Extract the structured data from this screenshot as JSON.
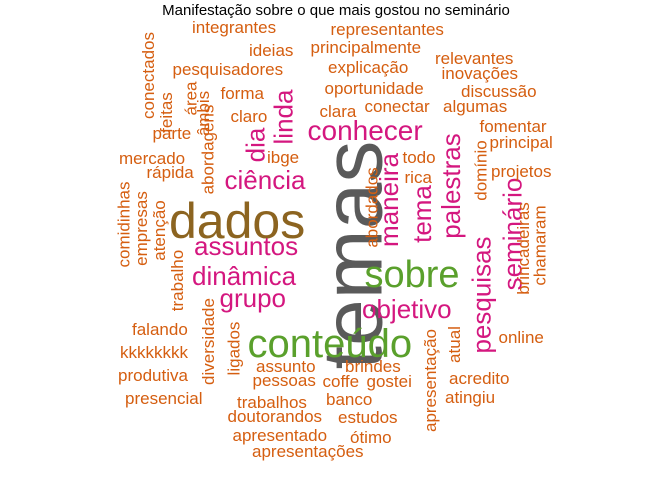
{
  "title": "Manifestação sobre o que mais gostou no seminário",
  "palette": {
    "largest": "#5a5a5a",
    "large": "#8c6420",
    "green": "#5aa02c",
    "magenta": "#d4177f",
    "orange": "#d55e10"
  },
  "words": [
    {
      "text": "temas",
      "color": "#5a5a5a"
    },
    {
      "text": "dados",
      "color": "#8c6420"
    },
    {
      "text": "sobre",
      "color": "#5aa02c"
    },
    {
      "text": "conteúdo",
      "color": "#5aa02c"
    },
    {
      "text": "conhecer",
      "color": "#d4177f"
    },
    {
      "text": "ciência",
      "color": "#d4177f"
    },
    {
      "text": "assuntos",
      "color": "#d4177f"
    },
    {
      "text": "dinâmica",
      "color": "#d4177f"
    },
    {
      "text": "grupo",
      "color": "#d4177f"
    },
    {
      "text": "objetivo",
      "color": "#d4177f"
    },
    {
      "text": "linda",
      "color": "#d4177f"
    },
    {
      "text": "dia",
      "color": "#d4177f"
    },
    {
      "text": "maneira",
      "color": "#d4177f"
    },
    {
      "text": "tema",
      "color": "#d4177f"
    },
    {
      "text": "palestras",
      "color": "#d4177f"
    },
    {
      "text": "pesquisas",
      "color": "#d4177f"
    },
    {
      "text": "seminário",
      "color": "#d4177f"
    },
    {
      "text": "integrantes",
      "color": "#d55e10"
    },
    {
      "text": "representantes",
      "color": "#d55e10"
    },
    {
      "text": "conectados",
      "color": "#d55e10"
    },
    {
      "text": "ideias",
      "color": "#d55e10"
    },
    {
      "text": "principalmente",
      "color": "#d55e10"
    },
    {
      "text": "relevantes",
      "color": "#d55e10"
    },
    {
      "text": "pesquisadores",
      "color": "#d55e10"
    },
    {
      "text": "explicação",
      "color": "#d55e10"
    },
    {
      "text": "inovações",
      "color": "#d55e10"
    },
    {
      "text": "área",
      "color": "#d55e10"
    },
    {
      "text": "oportunidade",
      "color": "#d55e10"
    },
    {
      "text": "discussão",
      "color": "#d55e10"
    },
    {
      "text": "feitas",
      "color": "#d55e10"
    },
    {
      "text": "âmbis",
      "color": "#d55e10"
    },
    {
      "text": "forma",
      "color": "#d55e10"
    },
    {
      "text": "conectar",
      "color": "#d55e10"
    },
    {
      "text": "algumas",
      "color": "#d55e10"
    },
    {
      "text": "claro",
      "color": "#d55e10"
    },
    {
      "text": "clara",
      "color": "#d55e10"
    },
    {
      "text": "fomentar",
      "color": "#d55e10"
    },
    {
      "text": "parte",
      "color": "#d55e10"
    },
    {
      "text": "abordagens",
      "color": "#d55e10"
    },
    {
      "text": "principal",
      "color": "#d55e10"
    },
    {
      "text": "mercado",
      "color": "#d55e10"
    },
    {
      "text": "ibge",
      "color": "#d55e10"
    },
    {
      "text": "todo",
      "color": "#d55e10"
    },
    {
      "text": "domínio",
      "color": "#d55e10"
    },
    {
      "text": "rápida",
      "color": "#d55e10"
    },
    {
      "text": "rica",
      "color": "#d55e10"
    },
    {
      "text": "projetos",
      "color": "#d55e10"
    },
    {
      "text": "comidinhas",
      "color": "#d55e10"
    },
    {
      "text": "empresas",
      "color": "#d55e10"
    },
    {
      "text": "atenção",
      "color": "#d55e10"
    },
    {
      "text": "abordados",
      "color": "#d55e10"
    },
    {
      "text": "brincadeiras",
      "color": "#d55e10"
    },
    {
      "text": "chamaram",
      "color": "#d55e10"
    },
    {
      "text": "trabalho",
      "color": "#d55e10"
    },
    {
      "text": "diversidade",
      "color": "#d55e10"
    },
    {
      "text": "ligados",
      "color": "#d55e10"
    },
    {
      "text": "falando",
      "color": "#d55e10"
    },
    {
      "text": "online",
      "color": "#d55e10"
    },
    {
      "text": "apresentação",
      "color": "#d55e10"
    },
    {
      "text": "atual",
      "color": "#d55e10"
    },
    {
      "text": "kkkkkkkk",
      "color": "#d55e10"
    },
    {
      "text": "assunto",
      "color": "#d55e10"
    },
    {
      "text": "brindes",
      "color": "#d55e10"
    },
    {
      "text": "produtiva",
      "color": "#d55e10"
    },
    {
      "text": "pessoas",
      "color": "#d55e10"
    },
    {
      "text": "coffe",
      "color": "#d55e10"
    },
    {
      "text": "gostei",
      "color": "#d55e10"
    },
    {
      "text": "acredito",
      "color": "#d55e10"
    },
    {
      "text": "presencial",
      "color": "#d55e10"
    },
    {
      "text": "trabalhos",
      "color": "#d55e10"
    },
    {
      "text": "banco",
      "color": "#d55e10"
    },
    {
      "text": "atingiu",
      "color": "#d55e10"
    },
    {
      "text": "doutorandos",
      "color": "#d55e10"
    },
    {
      "text": "estudos",
      "color": "#d55e10"
    },
    {
      "text": "apresentado",
      "color": "#d55e10"
    },
    {
      "text": "ótimo",
      "color": "#d55e10"
    },
    {
      "text": "apresentações",
      "color": "#d55e10"
    }
  ]
}
